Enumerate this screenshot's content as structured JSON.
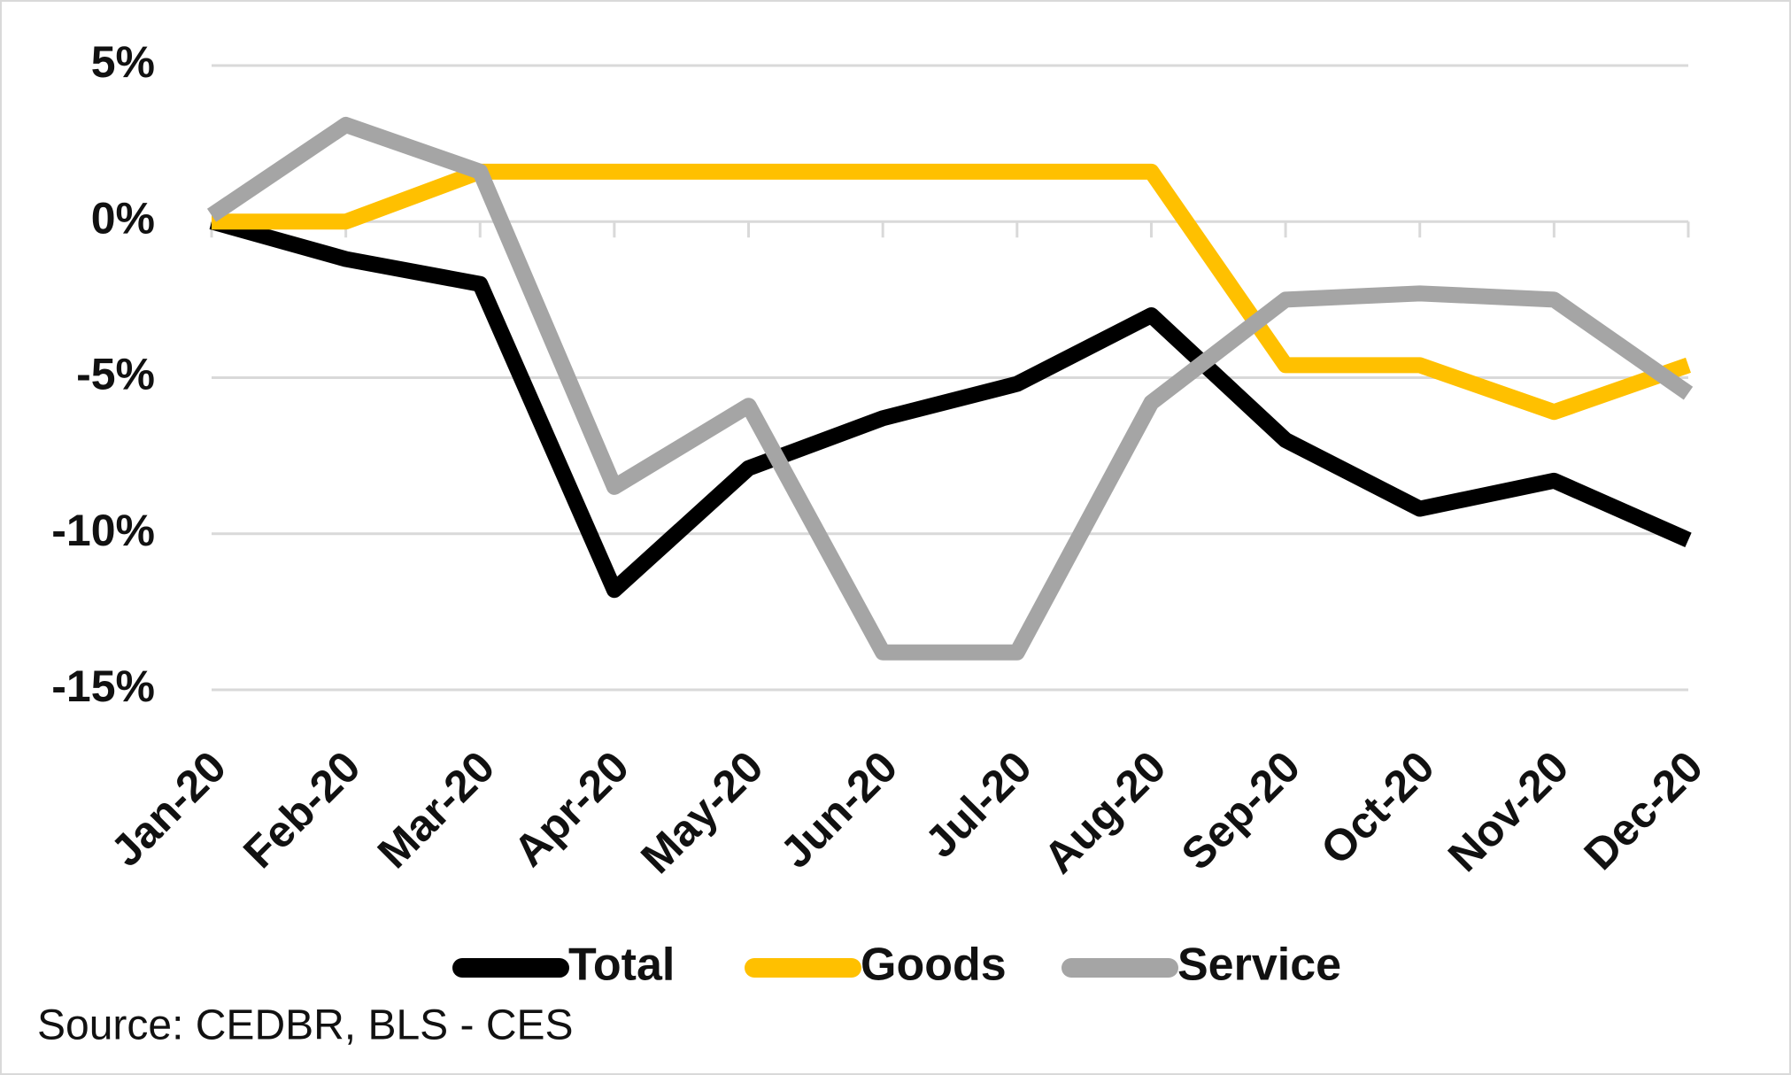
{
  "chart_data": {
    "type": "line",
    "categories": [
      "Jan-20",
      "Feb-20",
      "Mar-20",
      "Apr-20",
      "May-20",
      "Jun-20",
      "Jul-20",
      "Aug-20",
      "Sep-20",
      "Oct-20",
      "Nov-20",
      "Dec-20"
    ],
    "series": [
      {
        "name": "Total",
        "color": "#000000",
        "values": [
          0,
          -1.2,
          -2.0,
          -11.8,
          -7.9,
          -6.3,
          -5.2,
          -3.0,
          -7.0,
          -9.2,
          -8.3,
          -10.2
        ]
      },
      {
        "name": "Goods",
        "color": "#ffc000",
        "values": [
          0,
          0,
          1.6,
          1.6,
          1.6,
          1.6,
          1.6,
          1.6,
          -4.6,
          -4.6,
          -6.1,
          -4.6
        ]
      },
      {
        "name": "Service",
        "color": "#a5a5a5",
        "values": [
          0.2,
          3.1,
          1.6,
          -8.5,
          -5.9,
          -13.8,
          -13.8,
          -5.8,
          -2.5,
          -2.3,
          -2.5,
          -5.5
        ]
      }
    ],
    "ylim": [
      -15,
      5
    ],
    "yticks": [
      {
        "value": -15,
        "label": "-15%"
      },
      {
        "value": -10,
        "label": "-10%"
      },
      {
        "value": -5,
        "label": "-5%"
      },
      {
        "value": 0,
        "label": "0%"
      },
      {
        "value": 5,
        "label": "5%"
      }
    ],
    "grid": true,
    "legend": "bottom",
    "source": "Source: CEDBR, BLS - CES"
  }
}
